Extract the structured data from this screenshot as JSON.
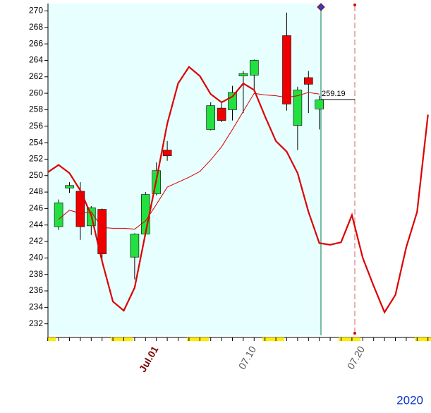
{
  "chart_data": {
    "type": "candlestick",
    "categories": [
      null,
      null,
      null,
      null,
      null,
      null,
      null,
      null,
      null,
      null,
      "Jul.01",
      null,
      null,
      null,
      null,
      null,
      null,
      null,
      null,
      "07.10",
      null,
      null,
      null,
      null,
      null,
      null,
      null,
      null,
      null,
      "07.20",
      null,
      null,
      null,
      null,
      null,
      null
    ],
    "year": "2020",
    "annotation": "259.19",
    "ylim": [
      230.6,
      270.9
    ],
    "yticks": [
      232,
      234,
      236,
      238,
      240,
      242,
      244,
      246,
      248,
      250,
      252,
      254,
      256,
      258,
      260,
      262,
      264,
      266,
      268,
      270
    ],
    "up_color": "#22e040",
    "down_color": "#ee0000",
    "candles": {
      "open": [
        null,
        243.8,
        248.5,
        248.1,
        243.9,
        245.9,
        null,
        null,
        240.1,
        242.9,
        247.8,
        253.1,
        null,
        null,
        null,
        255.6,
        258.2,
        258.0,
        262.1,
        262.2,
        null,
        null,
        267.0,
        256.1,
        261.9,
        258.1,
        null,
        null,
        null,
        null,
        null,
        null,
        null,
        null,
        null,
        null
      ],
      "high": [
        null,
        247.1,
        249.2,
        249.2,
        246.3,
        246.0,
        null,
        null,
        243.0,
        248.0,
        251.6,
        254.2,
        null,
        null,
        null,
        258.9,
        258.9,
        260.9,
        262.7,
        264.1,
        null,
        null,
        269.8,
        260.8,
        262.7,
        259.7,
        null,
        null,
        null,
        null,
        null,
        null,
        null,
        null,
        null,
        null
      ],
      "low": [
        null,
        243.4,
        247.9,
        242.2,
        242.8,
        239.6,
        null,
        null,
        237.4,
        242.7,
        247.6,
        251.8,
        null,
        null,
        null,
        255.5,
        256.5,
        256.7,
        257.6,
        260.2,
        null,
        null,
        257.9,
        253.1,
        257.6,
        255.6,
        null,
        null,
        null,
        null,
        null,
        null,
        null,
        null,
        null,
        null
      ],
      "close": [
        null,
        246.7,
        248.8,
        243.8,
        246.1,
        240.5,
        null,
        null,
        242.9,
        247.7,
        250.6,
        252.4,
        null,
        null,
        null,
        258.5,
        256.7,
        260.1,
        262.4,
        264.0,
        null,
        null,
        258.7,
        260.4,
        261.1,
        259.2,
        null,
        null,
        null,
        null,
        null,
        null,
        null,
        null,
        null,
        null
      ]
    },
    "series": [
      {
        "color": "#dd0000",
        "width": 2.2,
        "values": [
          250.4,
          251.3,
          250.3,
          248.2,
          245.2,
          239.6,
          234.7,
          233.6,
          236.4,
          243.0,
          249.5,
          256.3,
          261.2,
          263.2,
          262.1,
          259.9,
          258.9,
          259.6,
          261.2,
          260.4,
          257.2,
          254.2,
          252.9,
          250.3,
          245.6,
          241.8,
          241.6,
          241.9,
          245.2,
          240.0,
          236.6,
          233.4,
          235.5,
          241.3,
          245.6,
          257.4
        ]
      },
      {
        "color": "#dd0000",
        "width": 1,
        "values": [
          null,
          244.7,
          245.8,
          245.4,
          245.6,
          243.7,
          243.6,
          243.6,
          243.5,
          244.5,
          246.5,
          248.6,
          249.2,
          249.8,
          250.5,
          251.9,
          253.5,
          255.6,
          257.8,
          260.0,
          259.8,
          259.7,
          259.5,
          259.7,
          260.1,
          259.9,
          null,
          null,
          null,
          null,
          null,
          null,
          null,
          null,
          null,
          null
        ]
      }
    ]
  }
}
